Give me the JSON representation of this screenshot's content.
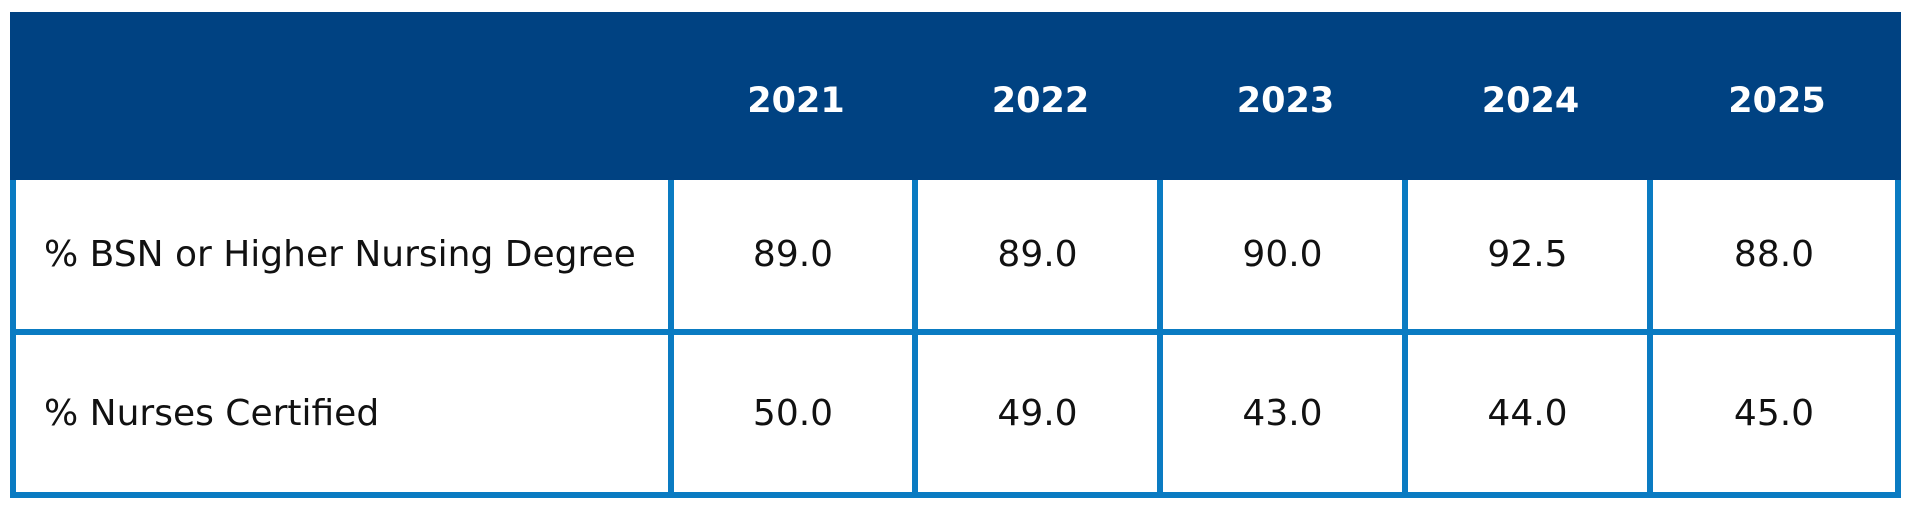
{
  "table": {
    "header": [
      "2021",
      "2022",
      "2023",
      "2024",
      "2025"
    ],
    "rows": [
      [
        "% BSN or Higher Nursing Degree",
        "89.0",
        "89.0",
        "90.0",
        "92.5",
        "88.0"
      ],
      [
        "% Nurses Certified",
        "50.0",
        "49.0",
        "43.0",
        "44.0",
        "45.0"
      ]
    ]
  }
}
